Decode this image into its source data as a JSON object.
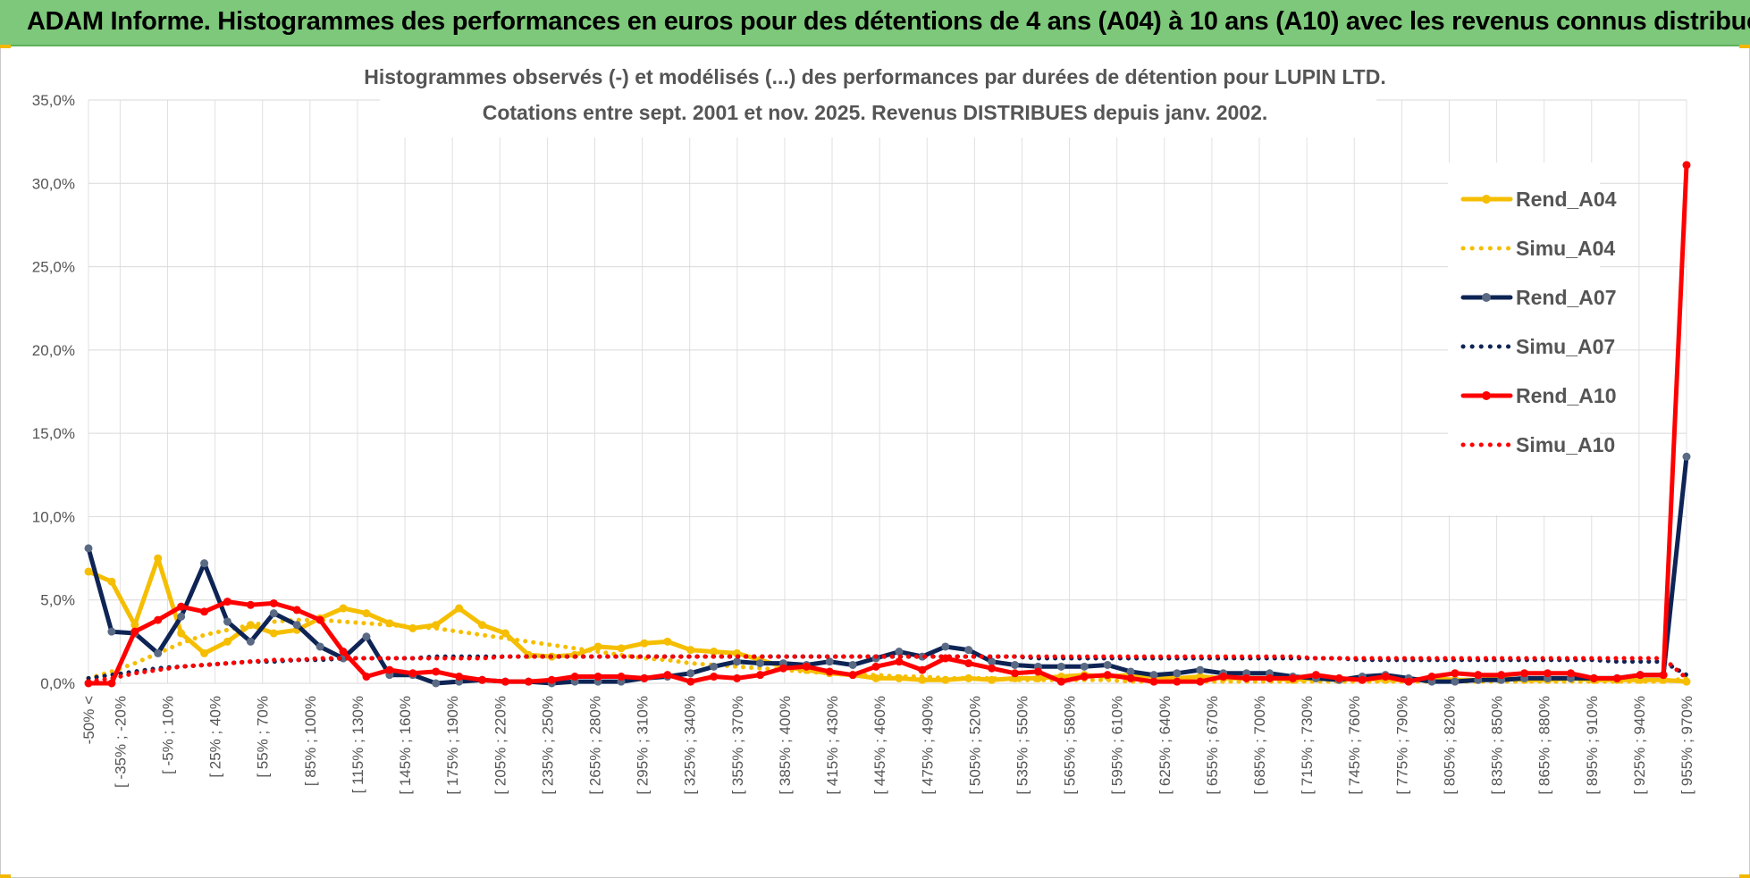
{
  "banner": {
    "title": "ADAM Informe. Histogrammes des performances en euros pour des détentions de 4 ans (A04) à 10 ans (A10) avec les revenus connus distribués"
  },
  "colors": {
    "banner": "#7dc87a",
    "a04": "#f5be00",
    "a07": "#0e2455",
    "a07_marker": "#5a6a84",
    "a10": "#ff0000"
  },
  "chart_data": {
    "type": "line",
    "title": [
      "Histogrammes observés (-) et modélisés (...) des performances par durées de détention pour LUPIN LTD.",
      "Cotations entre sept. 2001 et nov. 2025. Revenus DISTRIBUES depuis janv. 2002."
    ],
    "ylim": [
      0,
      35
    ],
    "y_ticks": [
      "0,0%",
      "5,0%",
      "10,0%",
      "15,0%",
      "20,0%",
      "25,0%",
      "30,0%",
      "35,0%"
    ],
    "y_tick_values": [
      0,
      5,
      10,
      15,
      20,
      25,
      30,
      35
    ],
    "category_count": 70,
    "x_labels": [
      {
        "i": 0,
        "label": "-50% <"
      },
      {
        "i": 2,
        "label": "[ -35% ; -20%"
      },
      {
        "i": 5,
        "label": "[ -5% ; 10%"
      },
      {
        "i": 8,
        "label": "[ 25% ; 40%"
      },
      {
        "i": 11,
        "label": "[ 55% ; 70%"
      },
      {
        "i": 14,
        "label": "[ 85% ; 100%"
      },
      {
        "i": 17,
        "label": "[ 115% ; 130%"
      },
      {
        "i": 20,
        "label": "[ 145% ; 160%"
      },
      {
        "i": 23,
        "label": "[ 175% ; 190%"
      },
      {
        "i": 26,
        "label": "[ 205% ; 220%"
      },
      {
        "i": 29,
        "label": "[ 235% ; 250%"
      },
      {
        "i": 32,
        "label": "[ 265% ; 280%"
      },
      {
        "i": 35,
        "label": "[ 295% ; 310%"
      },
      {
        "i": 38,
        "label": "[ 325% ; 340%"
      },
      {
        "i": 41,
        "label": "[ 355% ; 370%"
      },
      {
        "i": 44,
        "label": "[ 385% ; 400%"
      },
      {
        "i": 47,
        "label": "[ 415% ; 430%"
      },
      {
        "i": 50,
        "label": "[ 445% ; 460%"
      },
      {
        "i": 53,
        "label": "[ 475% ; 490%"
      },
      {
        "i": 56,
        "label": "[ 505% ; 520%"
      },
      {
        "i": 59,
        "label": "[ 535% ; 550%"
      },
      {
        "i": 62,
        "label": "[ 565% ; 580%"
      },
      {
        "i": 65,
        "label": "[ 595% ; 610%"
      },
      {
        "i": 68,
        "label": "[ 625% ; 640%"
      },
      {
        "i": 71,
        "label": "[ 655% ; 670%"
      },
      {
        "i": 74,
        "label": "[ 685% ; 700%"
      },
      {
        "i": 77,
        "label": "[ 715% ; 730%"
      },
      {
        "i": 80,
        "label": "[ 745% ; 760%"
      },
      {
        "i": 83,
        "label": "[ 775% ; 790%"
      },
      {
        "i": 86,
        "label": "[ 805% ; 820%"
      },
      {
        "i": 89,
        "label": "[ 835% ; 850%"
      },
      {
        "i": 92,
        "label": "[ 865% ; 880%"
      },
      {
        "i": 95,
        "label": "[ 895% ; 910%"
      },
      {
        "i": 98,
        "label": "[ 925% ; 940%"
      },
      {
        "i": 101,
        "label": "[ 955% ; 970%"
      }
    ],
    "series": [
      {
        "name": "Rend_A04",
        "style": "solid",
        "color": "#f5be00",
        "marker": true,
        "values": [
          6.7,
          6.1,
          3.5,
          7.5,
          3.0,
          1.8,
          2.5,
          3.5,
          3.0,
          3.2,
          3.9,
          4.5,
          4.2,
          3.6,
          3.3,
          3.5,
          4.5,
          3.5,
          3.0,
          1.7,
          1.6,
          1.7,
          2.2,
          2.1,
          2.4,
          2.5,
          2.0,
          1.9,
          1.8,
          1.4,
          1.0,
          0.8,
          0.6,
          0.5,
          0.3,
          0.3,
          0.2,
          0.2,
          0.3,
          0.2,
          0.3,
          0.3,
          0.4,
          0.5,
          0.4,
          0.5,
          0.4,
          0.3,
          0.4,
          0.3,
          0.3,
          0.3,
          0.2,
          0.3,
          0.2,
          0.3,
          0.2,
          0.2,
          0.3,
          0.2,
          0.2,
          0.3,
          0.2,
          0.2,
          0.3,
          0.2,
          0.2,
          0.2,
          0.2,
          0.1
        ]
      },
      {
        "name": "Simu_A04",
        "style": "dotted",
        "color": "#f5be00",
        "marker": false,
        "values": [
          0.3,
          0.7,
          1.2,
          1.8,
          2.4,
          2.9,
          3.2,
          3.5,
          3.7,
          3.8,
          3.8,
          3.7,
          3.6,
          3.5,
          3.4,
          3.3,
          3.1,
          2.9,
          2.7,
          2.5,
          2.3,
          2.1,
          1.9,
          1.7,
          1.5,
          1.4,
          1.2,
          1.1,
          1.0,
          0.9,
          0.8,
          0.7,
          0.6,
          0.5,
          0.5,
          0.4,
          0.4,
          0.3,
          0.3,
          0.3,
          0.2,
          0.2,
          0.2,
          0.2,
          0.2,
          0.1,
          0.1,
          0.1,
          0.1,
          0.1,
          0.1,
          0.1,
          0.1,
          0.1,
          0.1,
          0.1,
          0.1,
          0.1,
          0.1,
          0.1,
          0.1,
          0.1,
          0.1,
          0.1,
          0.1,
          0.1,
          0.1,
          0.1,
          0.1,
          0.3
        ]
      },
      {
        "name": "Rend_A07",
        "style": "solid",
        "color": "#0e2455",
        "marker": true,
        "values": [
          8.1,
          3.1,
          3.0,
          1.8,
          4.0,
          7.2,
          3.7,
          2.5,
          4.2,
          3.5,
          2.2,
          1.5,
          2.8,
          0.5,
          0.5,
          0.0,
          0.1,
          0.2,
          0.1,
          0.1,
          0.0,
          0.1,
          0.1,
          0.1,
          0.3,
          0.4,
          0.6,
          1.0,
          1.3,
          1.2,
          1.2,
          1.1,
          1.3,
          1.1,
          1.5,
          1.9,
          1.6,
          2.2,
          2.0,
          1.3,
          1.1,
          1.0,
          1.0,
          1.0,
          1.1,
          0.7,
          0.5,
          0.6,
          0.8,
          0.6,
          0.6,
          0.6,
          0.4,
          0.3,
          0.2,
          0.4,
          0.5,
          0.3,
          0.1,
          0.1,
          0.2,
          0.2,
          0.3,
          0.3,
          0.3,
          0.3,
          0.3,
          0.5,
          0.5,
          13.6
        ]
      },
      {
        "name": "Simu_A07",
        "style": "dotted",
        "color": "#0e2455",
        "marker": false,
        "values": [
          0.3,
          0.5,
          0.7,
          0.9,
          1.0,
          1.1,
          1.2,
          1.3,
          1.3,
          1.4,
          1.4,
          1.5,
          1.5,
          1.5,
          1.5,
          1.6,
          1.6,
          1.6,
          1.6,
          1.6,
          1.6,
          1.6,
          1.6,
          1.6,
          1.6,
          1.6,
          1.6,
          1.6,
          1.6,
          1.6,
          1.6,
          1.6,
          1.6,
          1.6,
          1.6,
          1.6,
          1.6,
          1.6,
          1.6,
          1.6,
          1.6,
          1.5,
          1.5,
          1.5,
          1.5,
          1.5,
          1.5,
          1.5,
          1.5,
          1.5,
          1.5,
          1.5,
          1.5,
          1.5,
          1.5,
          1.4,
          1.4,
          1.4,
          1.4,
          1.4,
          1.4,
          1.4,
          1.4,
          1.4,
          1.4,
          1.4,
          1.3,
          1.3,
          1.3,
          0.5
        ]
      },
      {
        "name": "Rend_A10",
        "style": "solid",
        "color": "#ff0000",
        "marker": true,
        "values": [
          0.0,
          0.0,
          3.1,
          3.8,
          4.6,
          4.3,
          4.9,
          4.7,
          4.8,
          4.4,
          3.8,
          1.9,
          0.4,
          0.8,
          0.6,
          0.7,
          0.4,
          0.2,
          0.1,
          0.1,
          0.2,
          0.4,
          0.4,
          0.4,
          0.3,
          0.5,
          0.1,
          0.4,
          0.3,
          0.5,
          0.9,
          1.0,
          0.7,
          0.5,
          1.0,
          1.3,
          0.8,
          1.5,
          1.2,
          0.9,
          0.6,
          0.7,
          0.1,
          0.4,
          0.5,
          0.3,
          0.1,
          0.1,
          0.1,
          0.4,
          0.3,
          0.3,
          0.3,
          0.5,
          0.3,
          0.2,
          0.4,
          0.1,
          0.4,
          0.6,
          0.5,
          0.5,
          0.6,
          0.6,
          0.6,
          0.3,
          0.3,
          0.5,
          0.5,
          31.1
        ]
      },
      {
        "name": "Simu_A10",
        "style": "dotted",
        "color": "#ff0000",
        "marker": false,
        "values": [
          0.1,
          0.3,
          0.6,
          0.8,
          1.0,
          1.1,
          1.2,
          1.3,
          1.4,
          1.4,
          1.5,
          1.5,
          1.5,
          1.5,
          1.5,
          1.5,
          1.5,
          1.5,
          1.6,
          1.6,
          1.6,
          1.6,
          1.6,
          1.6,
          1.6,
          1.6,
          1.6,
          1.6,
          1.6,
          1.6,
          1.6,
          1.6,
          1.6,
          1.6,
          1.6,
          1.6,
          1.6,
          1.6,
          1.6,
          1.6,
          1.6,
          1.6,
          1.6,
          1.6,
          1.6,
          1.6,
          1.6,
          1.6,
          1.6,
          1.6,
          1.6,
          1.6,
          1.6,
          1.5,
          1.5,
          1.5,
          1.5,
          1.5,
          1.5,
          1.5,
          1.5,
          1.5,
          1.5,
          1.5,
          1.5,
          1.5,
          1.5,
          1.5,
          1.5,
          0.3
        ]
      }
    ],
    "legend_position": "right",
    "grid": true
  }
}
